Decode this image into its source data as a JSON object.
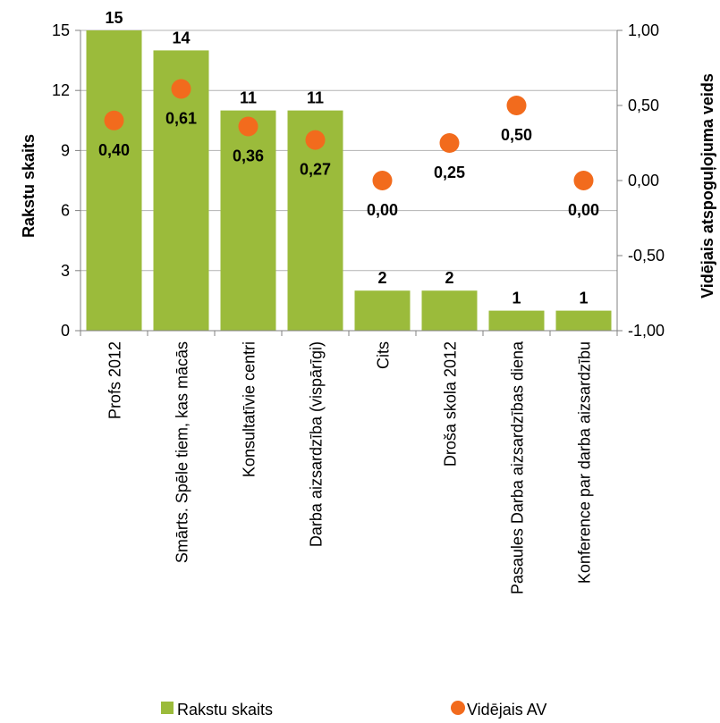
{
  "chart_data": {
    "type": "bar",
    "categories": [
      "Profs 2012",
      "Smārts. Spēle tiem, kas mācās",
      "Konsultatīvie centri",
      "Darba aizsardzība (vispārīgi)",
      "Cits",
      "Droša skola 2012",
      "Pasaules Darba aizsardzības diena",
      "Konference par darba aizsardzību"
    ],
    "series": [
      {
        "name": "Rakstu skaits",
        "type": "bar",
        "axis": "left",
        "color": "#9bbb3b",
        "values": [
          15,
          14,
          11,
          11,
          2,
          2,
          1,
          1
        ],
        "labels": [
          "15",
          "14",
          "11",
          "11",
          "2",
          "2",
          "1",
          "1"
        ]
      },
      {
        "name": "Vidējais AV",
        "type": "scatter",
        "axis": "right",
        "color": "#f26b1d",
        "values": [
          0.4,
          0.61,
          0.36,
          0.27,
          0.0,
          0.25,
          0.5,
          0.0
        ],
        "labels": [
          "0,40",
          "0,61",
          "0,36",
          "0,27",
          "0,00",
          "0,25",
          "0,50",
          "0,00"
        ]
      }
    ],
    "ylabel": "Rakstu skaits",
    "y2label": "Vidējais atspoguļojuma veids",
    "ylim": [
      0,
      15
    ],
    "y2lim": [
      -1,
      1
    ],
    "yticks": [
      0,
      3,
      6,
      9,
      12,
      15
    ],
    "yticklabels": [
      "0",
      "3",
      "6",
      "9",
      "12",
      "15"
    ],
    "y2ticks": [
      -1,
      -0.5,
      0,
      0.5,
      1
    ],
    "y2ticklabels": [
      "-1,00",
      "-0,50",
      "0,00",
      "0,50",
      "1,00"
    ],
    "grid": true,
    "legend": "bottom"
  }
}
